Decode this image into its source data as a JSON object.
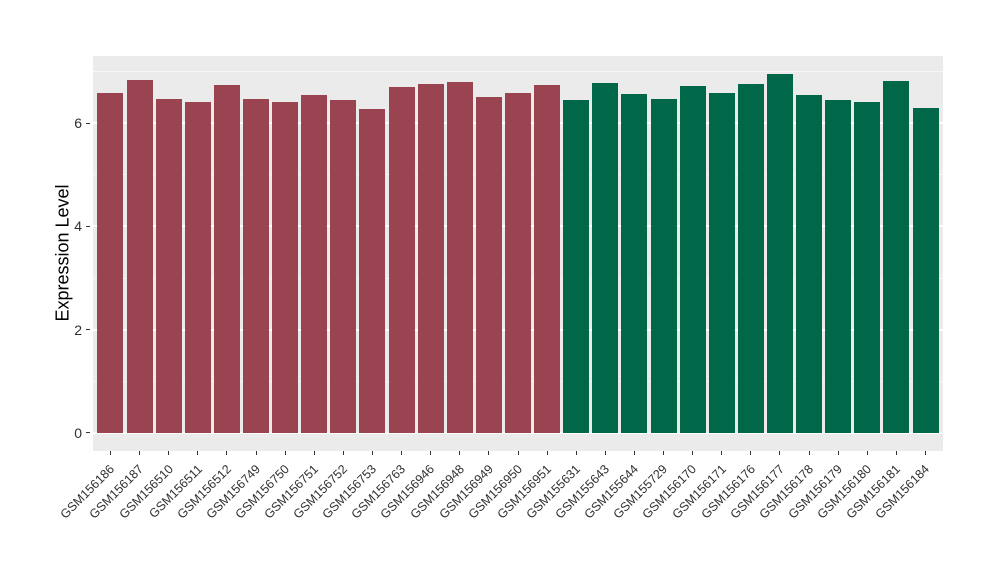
{
  "chart_data": {
    "type": "bar",
    "title": "",
    "xlabel": "",
    "ylabel": "Expression Level",
    "ylim": [
      -0.35,
      7.3
    ],
    "yticks": [
      0,
      2,
      4,
      6
    ],
    "yticks_minor": [
      1,
      3,
      5,
      7
    ],
    "grid": true,
    "legend": "none",
    "x_label_angle_deg": 45,
    "group_colors": {
      "group1": "#9A4451",
      "group2": "#006848"
    },
    "colors": {
      "panel_bg": "#EBEBEB",
      "grid": "#FFFFFF",
      "tick": "#333333",
      "axis_text": "#303030"
    },
    "bars": [
      {
        "label": "GSM156186",
        "value": 6.58,
        "group": "group1"
      },
      {
        "label": "GSM156187",
        "value": 6.84,
        "group": "group1"
      },
      {
        "label": "GSM156510",
        "value": 6.47,
        "group": "group1"
      },
      {
        "label": "GSM156511",
        "value": 6.41,
        "group": "group1"
      },
      {
        "label": "GSM156512",
        "value": 6.74,
        "group": "group1"
      },
      {
        "label": "GSM156749",
        "value": 6.47,
        "group": "group1"
      },
      {
        "label": "GSM156750",
        "value": 6.4,
        "group": "group1"
      },
      {
        "label": "GSM156751",
        "value": 6.55,
        "group": "group1"
      },
      {
        "label": "GSM156752",
        "value": 6.44,
        "group": "group1"
      },
      {
        "label": "GSM156753",
        "value": 6.27,
        "group": "group1"
      },
      {
        "label": "GSM156763",
        "value": 6.69,
        "group": "group1"
      },
      {
        "label": "GSM156946",
        "value": 6.75,
        "group": "group1"
      },
      {
        "label": "GSM156948",
        "value": 6.79,
        "group": "group1"
      },
      {
        "label": "GSM156949",
        "value": 6.51,
        "group": "group1"
      },
      {
        "label": "GSM156950",
        "value": 6.58,
        "group": "group1"
      },
      {
        "label": "GSM156951",
        "value": 6.74,
        "group": "group1"
      },
      {
        "label": "GSM155631",
        "value": 6.44,
        "group": "group2"
      },
      {
        "label": "GSM155643",
        "value": 6.78,
        "group": "group2"
      },
      {
        "label": "GSM155644",
        "value": 6.56,
        "group": "group2"
      },
      {
        "label": "GSM155729",
        "value": 6.46,
        "group": "group2"
      },
      {
        "label": "GSM156170",
        "value": 6.72,
        "group": "group2"
      },
      {
        "label": "GSM156171",
        "value": 6.58,
        "group": "group2"
      },
      {
        "label": "GSM156176",
        "value": 6.75,
        "group": "group2"
      },
      {
        "label": "GSM156177",
        "value": 6.95,
        "group": "group2"
      },
      {
        "label": "GSM156178",
        "value": 6.54,
        "group": "group2"
      },
      {
        "label": "GSM156179",
        "value": 6.45,
        "group": "group2"
      },
      {
        "label": "GSM156180",
        "value": 6.41,
        "group": "group2"
      },
      {
        "label": "GSM156181",
        "value": 6.81,
        "group": "group2"
      },
      {
        "label": "GSM156184",
        "value": 6.3,
        "group": "group2"
      }
    ]
  }
}
